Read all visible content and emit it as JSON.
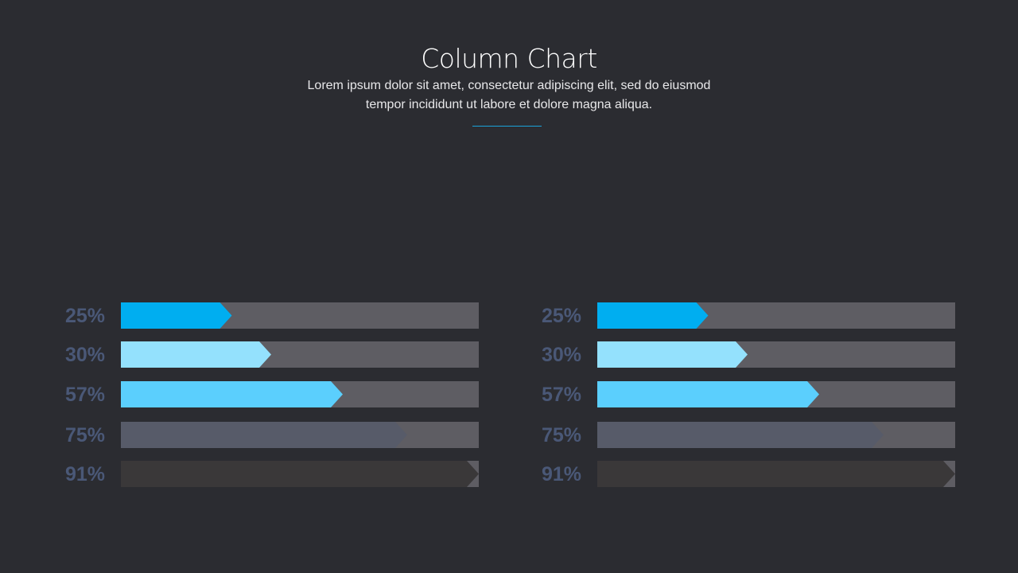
{
  "header": {
    "title": "Column Chart",
    "subtitle": "Lorem ipsum dolor sit amet, consectetur adipiscing elit, sed do eiusmod tempor incididunt  ut labore et dolore magna aliqua."
  },
  "colors": {
    "background": "#2b2c31",
    "track": "#5e5d63",
    "label": "#4a5877",
    "divider": "#1aa3d9"
  },
  "chart_data": [
    {
      "type": "bar",
      "orientation": "horizontal",
      "categories": [
        "25%",
        "30%",
        "57%",
        "75%",
        "91%"
      ],
      "values": [
        25,
        30,
        57,
        75,
        91
      ],
      "fill_fractions": [
        0.31,
        0.42,
        0.62,
        0.8,
        1.0
      ],
      "bar_colors": [
        "#00aef0",
        "#94e1fd",
        "#5bcffd",
        "#575b69",
        "#3a3839"
      ],
      "xlim": [
        0,
        100
      ],
      "title": "",
      "xlabel": "",
      "ylabel": "",
      "grid": false
    },
    {
      "type": "bar",
      "orientation": "horizontal",
      "categories": [
        "25%",
        "30%",
        "57%",
        "75%",
        "91%"
      ],
      "values": [
        25,
        30,
        57,
        75,
        91
      ],
      "fill_fractions": [
        0.31,
        0.42,
        0.62,
        0.8,
        1.0
      ],
      "bar_colors": [
        "#00aef0",
        "#94e1fd",
        "#5bcffd",
        "#575b69",
        "#3a3839"
      ],
      "xlim": [
        0,
        100
      ],
      "title": "",
      "xlabel": "",
      "ylabel": "",
      "grid": false
    }
  ]
}
